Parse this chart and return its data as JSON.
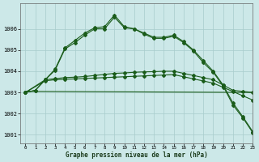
{
  "title": "Graphe pression niveau de la mer (hPa)",
  "background_color": "#cce8e8",
  "grid_color": "#a8cccc",
  "line_color": "#1a5c1a",
  "xlim": [
    -0.5,
    23
  ],
  "ylim": [
    1000.6,
    1007.2
  ],
  "xticks": [
    0,
    1,
    2,
    3,
    4,
    5,
    6,
    7,
    8,
    9,
    10,
    11,
    12,
    13,
    14,
    15,
    16,
    17,
    18,
    19,
    20,
    21,
    22,
    23
  ],
  "yticks": [
    1001,
    1002,
    1003,
    1004,
    1005,
    1006
  ],
  "line1_x": [
    0,
    1,
    2,
    3,
    4,
    5,
    6,
    7,
    8,
    9,
    10,
    11,
    12,
    13,
    14,
    15,
    16,
    17,
    18,
    19,
    20,
    21,
    22,
    23
  ],
  "line1_y": [
    1003.0,
    1003.1,
    1003.6,
    1004.1,
    1005.1,
    1005.45,
    1005.8,
    1006.05,
    1006.1,
    1006.65,
    1006.1,
    1006.0,
    1005.8,
    1005.6,
    1005.6,
    1005.7,
    1005.4,
    1005.0,
    1004.5,
    1004.0,
    1003.35,
    1002.5,
    1001.85,
    1001.15
  ],
  "line2_x": [
    0,
    1,
    2,
    3,
    4,
    5,
    6,
    7,
    8,
    9,
    10,
    11,
    12,
    13,
    14,
    15,
    16,
    17,
    18,
    19,
    20,
    21,
    22,
    23
  ],
  "line2_y": [
    1003.0,
    1003.1,
    1003.6,
    1004.05,
    1005.05,
    1005.35,
    1005.7,
    1006.0,
    1006.0,
    1006.55,
    1006.05,
    1006.0,
    1005.75,
    1005.55,
    1005.55,
    1005.65,
    1005.35,
    1004.95,
    1004.4,
    1003.95,
    1003.3,
    1002.4,
    1001.8,
    1001.1
  ],
  "line3_x": [
    0,
    2,
    3,
    4,
    5,
    6,
    7,
    8,
    9,
    10,
    11,
    12,
    13,
    14,
    15,
    16,
    17,
    18,
    19,
    20,
    21,
    22,
    23
  ],
  "line3_y": [
    1003.0,
    1003.6,
    1003.65,
    1003.7,
    1003.72,
    1003.75,
    1003.8,
    1003.85,
    1003.9,
    1003.92,
    1003.95,
    1003.97,
    1003.98,
    1004.0,
    1004.0,
    1003.9,
    1003.8,
    1003.7,
    1003.6,
    1003.35,
    1003.1,
    1003.05,
    1003.0
  ],
  "line4_x": [
    0,
    2,
    3,
    4,
    5,
    6,
    7,
    8,
    9,
    10,
    11,
    12,
    13,
    14,
    15,
    16,
    17,
    18,
    19,
    20,
    21,
    22,
    23
  ],
  "line4_y": [
    1003.0,
    1003.55,
    1003.6,
    1003.62,
    1003.64,
    1003.66,
    1003.68,
    1003.7,
    1003.72,
    1003.74,
    1003.76,
    1003.78,
    1003.8,
    1003.82,
    1003.84,
    1003.74,
    1003.64,
    1003.54,
    1003.44,
    1003.24,
    1003.04,
    1002.84,
    1002.64
  ],
  "line5_x": [
    0,
    23
  ],
  "line5_y": [
    1003.0,
    1003.0
  ]
}
